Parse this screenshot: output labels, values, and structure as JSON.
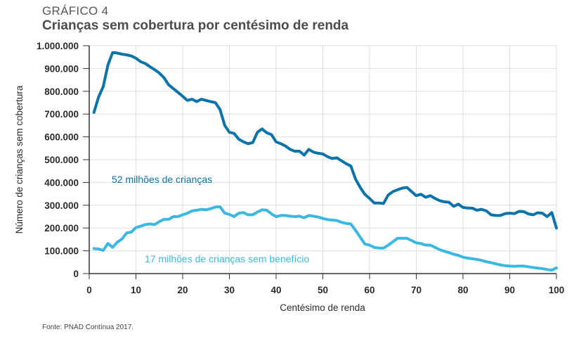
{
  "header": {
    "kicker": "GRÁFICO 4",
    "title": "Crianças sem cobertura por centésimo de renda"
  },
  "footer": {
    "source": "Fonte: PNAD Contínua 2017."
  },
  "colors": {
    "dark_series": "#0a73aa",
    "light_series": "#3bb8e0",
    "grid": "#dedede",
    "axis": "#333333"
  },
  "chart_data": {
    "type": "line",
    "title": "Crianças sem cobertura por centésimo de renda",
    "xlabel": "Centésimo de renda",
    "ylabel": "Número de crianças sem cobertura",
    "xlim": [
      0,
      100
    ],
    "ylim": [
      0,
      1000000
    ],
    "grid": true,
    "x_ticks": [
      0,
      10,
      20,
      30,
      40,
      50,
      60,
      70,
      80,
      90,
      100
    ],
    "x_tick_labels": [
      "0",
      "10",
      "20",
      "30",
      "40",
      "50",
      "60",
      "70",
      "80",
      "90",
      "100"
    ],
    "y_ticks": [
      0,
      100000,
      200000,
      300000,
      400000,
      500000,
      600000,
      700000,
      800000,
      900000,
      1000000
    ],
    "y_tick_labels": [
      "0",
      "100.000",
      "200.000",
      "300.000",
      "400.000",
      "500.000",
      "600.000",
      "700.000",
      "800.000",
      "900.000",
      "1.000.000"
    ],
    "x": [
      1,
      2,
      3,
      4,
      5,
      6,
      7,
      8,
      9,
      10,
      11,
      12,
      13,
      14,
      15,
      16,
      17,
      18,
      19,
      20,
      21,
      22,
      23,
      24,
      25,
      26,
      27,
      28,
      29,
      30,
      31,
      32,
      33,
      34,
      35,
      36,
      37,
      38,
      39,
      40,
      41,
      42,
      43,
      44,
      45,
      46,
      47,
      48,
      49,
      50,
      51,
      52,
      53,
      54,
      55,
      56,
      57,
      58,
      59,
      60,
      61,
      62,
      63,
      64,
      65,
      66,
      67,
      68,
      69,
      70,
      71,
      72,
      73,
      74,
      75,
      76,
      77,
      78,
      79,
      80,
      81,
      82,
      83,
      84,
      85,
      86,
      87,
      88,
      89,
      90,
      91,
      92,
      93,
      94,
      95,
      96,
      97,
      98,
      99,
      100
    ],
    "series": [
      {
        "name": "52 milhões de crianças",
        "color": "#0a73aa",
        "values": [
          707000,
          775000,
          820000,
          915000,
          970000,
          968000,
          963000,
          960000,
          955000,
          945000,
          930000,
          922000,
          908000,
          895000,
          880000,
          860000,
          828000,
          812000,
          795000,
          778000,
          760000,
          765000,
          755000,
          765000,
          760000,
          755000,
          750000,
          720000,
          650000,
          620000,
          615000,
          590000,
          578000,
          570000,
          575000,
          620000,
          635000,
          618000,
          610000,
          578000,
          570000,
          560000,
          545000,
          537000,
          537000,
          520000,
          545000,
          533000,
          528000,
          525000,
          513000,
          505000,
          508000,
          495000,
          482000,
          472000,
          415000,
          378000,
          348000,
          330000,
          310000,
          310000,
          308000,
          345000,
          360000,
          368000,
          375000,
          378000,
          360000,
          342000,
          348000,
          335000,
          342000,
          330000,
          320000,
          315000,
          313000,
          295000,
          305000,
          290000,
          288000,
          287000,
          278000,
          282000,
          275000,
          258000,
          255000,
          255000,
          263000,
          265000,
          263000,
          273000,
          272000,
          262000,
          258000,
          267000,
          265000,
          250000,
          268000,
          200000
        ]
      },
      {
        "name": "17 milhões de crianças sem benefício",
        "color": "#3bb8e0",
        "values": [
          110000,
          108000,
          102000,
          132000,
          115000,
          138000,
          152000,
          178000,
          182000,
          202000,
          208000,
          215000,
          218000,
          215000,
          228000,
          238000,
          238000,
          250000,
          250000,
          258000,
          265000,
          275000,
          278000,
          282000,
          280000,
          285000,
          292000,
          293000,
          265000,
          260000,
          250000,
          265000,
          268000,
          258000,
          258000,
          270000,
          280000,
          278000,
          262000,
          250000,
          255000,
          255000,
          252000,
          250000,
          252000,
          245000,
          255000,
          252000,
          248000,
          242000,
          237000,
          235000,
          233000,
          225000,
          220000,
          218000,
          190000,
          160000,
          130000,
          125000,
          115000,
          112000,
          112000,
          125000,
          140000,
          155000,
          155000,
          155000,
          145000,
          135000,
          132000,
          125000,
          125000,
          115000,
          105000,
          98000,
          92000,
          85000,
          80000,
          72000,
          68000,
          65000,
          62000,
          58000,
          52000,
          48000,
          43000,
          38000,
          35000,
          33000,
          32000,
          33000,
          33000,
          30000,
          27000,
          24000,
          22000,
          18000,
          15000,
          25000
        ]
      }
    ],
    "annotations": [
      {
        "text": "52 milhões de crianças",
        "series": 0
      },
      {
        "text": "17 milhões de crianças sem benefício",
        "series": 1
      }
    ],
    "legend": "none"
  }
}
